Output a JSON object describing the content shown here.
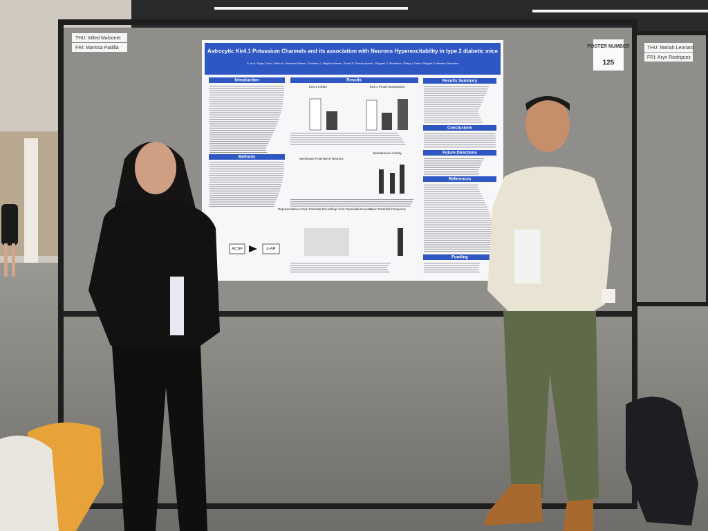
{
  "signs": {
    "left_thu": "THU: Miled Malsonet",
    "left_fri": "FRI: Marissa Padilla",
    "poster_number_label": "POSTER NUMBER",
    "poster_number": "125",
    "right_thu": "THU: Mariah Leonard",
    "right_fri": "FRI: Aryn Rodriguez"
  },
  "poster": {
    "title": "Astrocytic Kir4.1 Potassium Channels and its association with Neurons Hyperexcitability in type 2 diabetic mice",
    "authors": "¹Luis A. Rojas-Colón, ¹Miled A. Malsonet-Nieves, ¹Christian J. Malpica-Nieves, ¹David E. Rivera-Aponte, ¹Serguei S. Skatchkov, ¹Misty J. Eaton, ¹Miguel P. Méndez-González",
    "sections": {
      "introduction": "Introduction",
      "methods": "Methods",
      "results": "Results",
      "results_summary": "Results Summary",
      "conclusions": "Conclusions",
      "future_directions": "Future Directions",
      "references": "References",
      "funding": "Funding"
    },
    "figures": {
      "mrna": "Kir4.1 mRNA",
      "protein": "Kir4.1 Protein Expression",
      "membrane": "Membrane Potential of Neurons",
      "spontaneous": "Spontaneous Activity",
      "recordings": "Representative Action Potential Recordings from Pyramidal Neurons",
      "frequency": "Action Potential Frequency",
      "acsf": "ACSF",
      "four_ap": "4-AP"
    }
  }
}
